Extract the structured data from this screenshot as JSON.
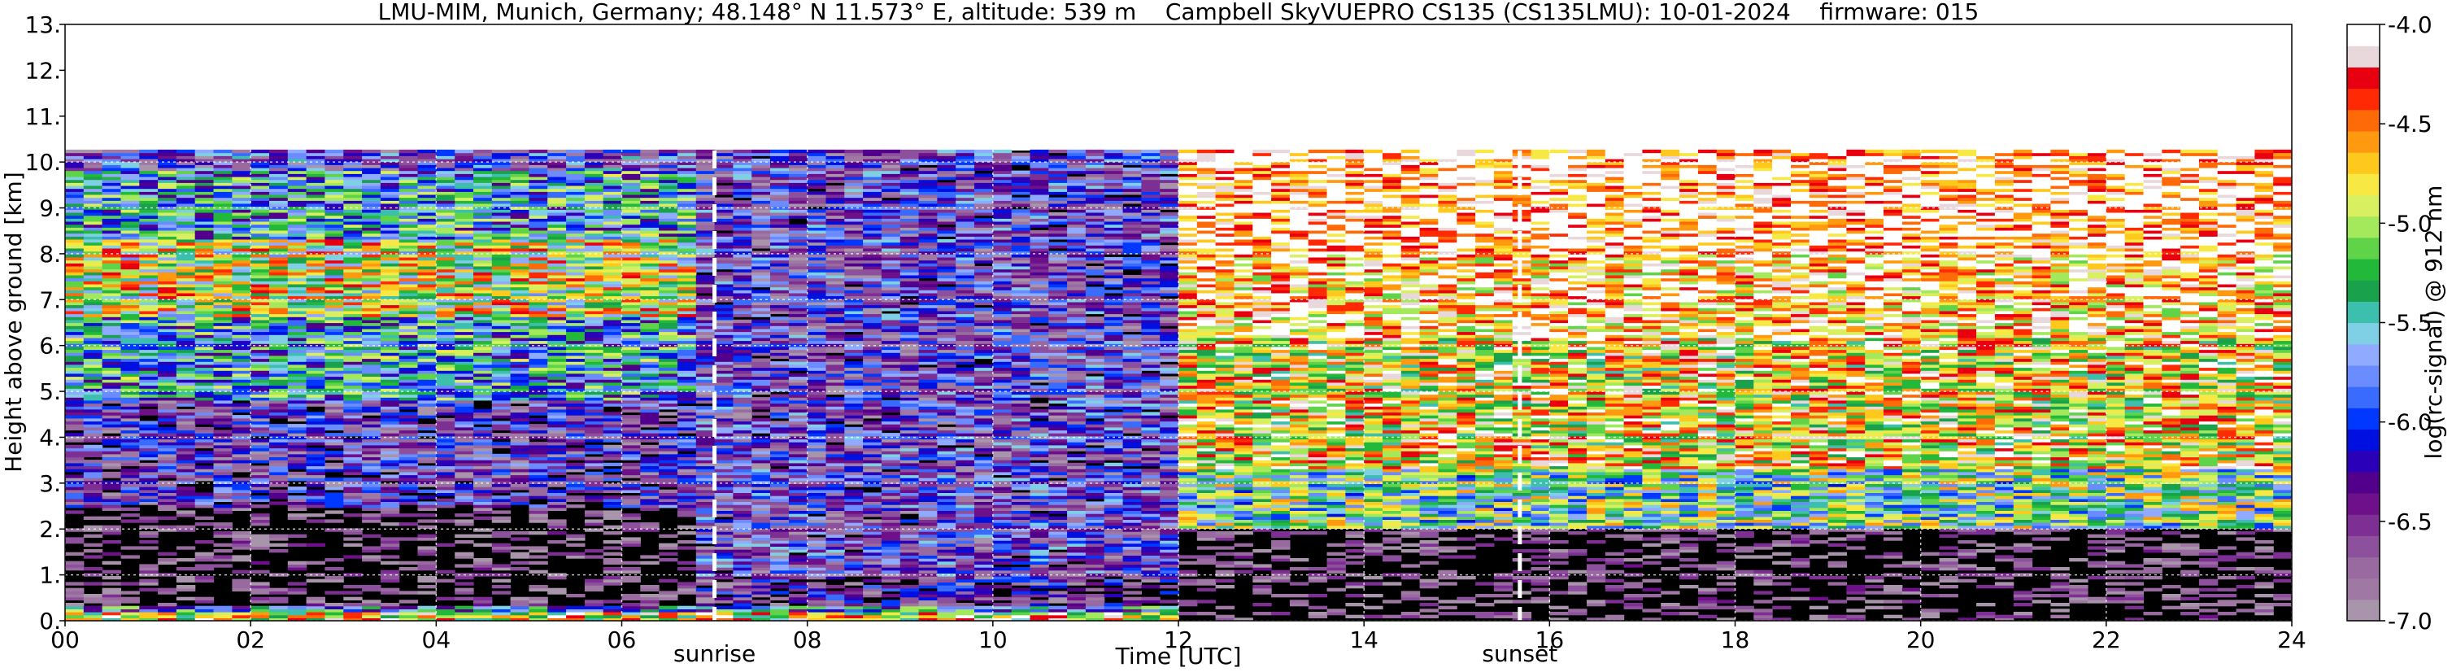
{
  "chart_data": {
    "type": "heatmap",
    "title": "LMU-MIM, Munich, Germany; 48.148° N 11.573° E, altitude: 539 m    Campbell SkyVUEPRO CS135 (CS135LMU): 10-01-2024    firmware: 015",
    "xlabel": "Time [UTC]",
    "ylabel": "Height above ground [km]",
    "colorbar_label": "log(rc-signal) @ 912 nm",
    "xlim": [
      0,
      24
    ],
    "ylim": [
      0,
      13
    ],
    "clim": [
      -7.0,
      -4.0
    ],
    "x_ticks": [
      "00",
      "02",
      "04",
      "06",
      "08",
      "10",
      "12",
      "14",
      "16",
      "18",
      "20",
      "22",
      "24"
    ],
    "y_ticks": [
      "0.",
      "1.",
      "2.",
      "3.",
      "4.",
      "5.",
      "6.",
      "7.",
      "8.",
      "9.",
      "10.",
      "11.",
      "12.",
      "13."
    ],
    "colorbar_ticks": [
      "-4.0",
      "-4.5",
      "-5.0",
      "-5.5",
      "-6.0",
      "-6.5",
      "-7.0"
    ],
    "grid": true,
    "data_top_km": 10.25,
    "colormap": [
      "#a895ab",
      "#9f79a4",
      "#986aa0",
      "#8c509c",
      "#7d2f93",
      "#6d1089",
      "#52008c",
      "#2a00b8",
      "#0010e0",
      "#0038ff",
      "#3a6bff",
      "#6b8cff",
      "#8faaff",
      "#7fd0e5",
      "#3dbfae",
      "#1aa14c",
      "#22b83a",
      "#60d448",
      "#a4e85c",
      "#d8f060",
      "#f8e844",
      "#ffc81c",
      "#ff9a10",
      "#ff6a08",
      "#ff2a04",
      "#e80010",
      "#e8d8dc",
      "#ffffff"
    ],
    "annotations": [
      {
        "label": "sunrise",
        "x": 7.0
      },
      {
        "label": "sunset",
        "x": 15.68
      }
    ],
    "regions": [
      {
        "x": [
          0.0,
          12.0
        ],
        "y": [
          0.0,
          0.18
        ],
        "level": -4.8
      },
      {
        "x": [
          0.0,
          12.0
        ],
        "y": [
          0.18,
          0.32
        ],
        "level": -5.7
      },
      {
        "x": [
          0.0,
          6.9
        ],
        "y": [
          0.32,
          2.5
        ],
        "level": -7.2
      },
      {
        "x": [
          0.0,
          6.9
        ],
        "y": [
          2.5,
          4.8
        ],
        "level": -6.4
      },
      {
        "x": [
          0.0,
          6.9
        ],
        "y": [
          4.8,
          9.8
        ],
        "level": -5.6
      },
      {
        "x": [
          0.0,
          6.9
        ],
        "y": [
          6.6,
          8.3
        ],
        "level": -5.0
      },
      {
        "x": [
          0.0,
          6.9
        ],
        "y": [
          9.8,
          10.25
        ],
        "level": -6.2
      },
      {
        "x": [
          6.9,
          12.0
        ],
        "y": [
          0.35,
          1.0
        ],
        "level": -6.6
      },
      {
        "x": [
          6.9,
          12.0
        ],
        "y": [
          1.0,
          10.25
        ],
        "level": -6.3
      },
      {
        "x": [
          12.0,
          24.0
        ],
        "y": [
          0.0,
          2.0
        ],
        "level": -7.2
      },
      {
        "x": [
          12.0,
          24.0
        ],
        "y": [
          2.0,
          3.3
        ],
        "level": -5.3
      },
      {
        "x": [
          12.0,
          24.0
        ],
        "y": [
          3.3,
          6.2
        ],
        "level": -4.7
      },
      {
        "x": [
          12.0,
          24.0
        ],
        "y": [
          6.2,
          8.0
        ],
        "level": -4.4
      },
      {
        "x": [
          12.0,
          24.0
        ],
        "y": [
          8.0,
          10.25
        ],
        "level": -4.1
      }
    ]
  }
}
